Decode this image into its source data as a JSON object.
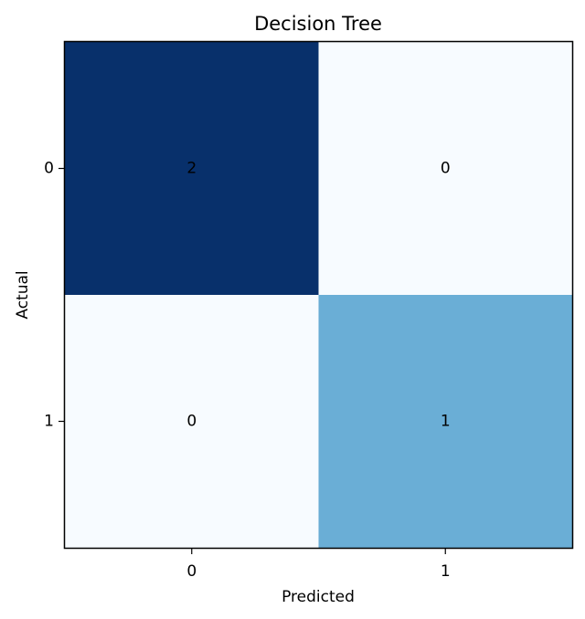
{
  "chart_data": {
    "type": "heatmap",
    "title": "Decision Tree",
    "xlabel": "Predicted",
    "ylabel": "Actual",
    "x_categories": [
      "0",
      "1"
    ],
    "y_categories": [
      "0",
      "1"
    ],
    "values": [
      [
        2,
        0
      ],
      [
        0,
        1
      ]
    ],
    "colormap": "Blues",
    "color_low": "#f7fbff",
    "color_mid": "#6aaed6",
    "color_high": "#08306b",
    "grid": false
  }
}
